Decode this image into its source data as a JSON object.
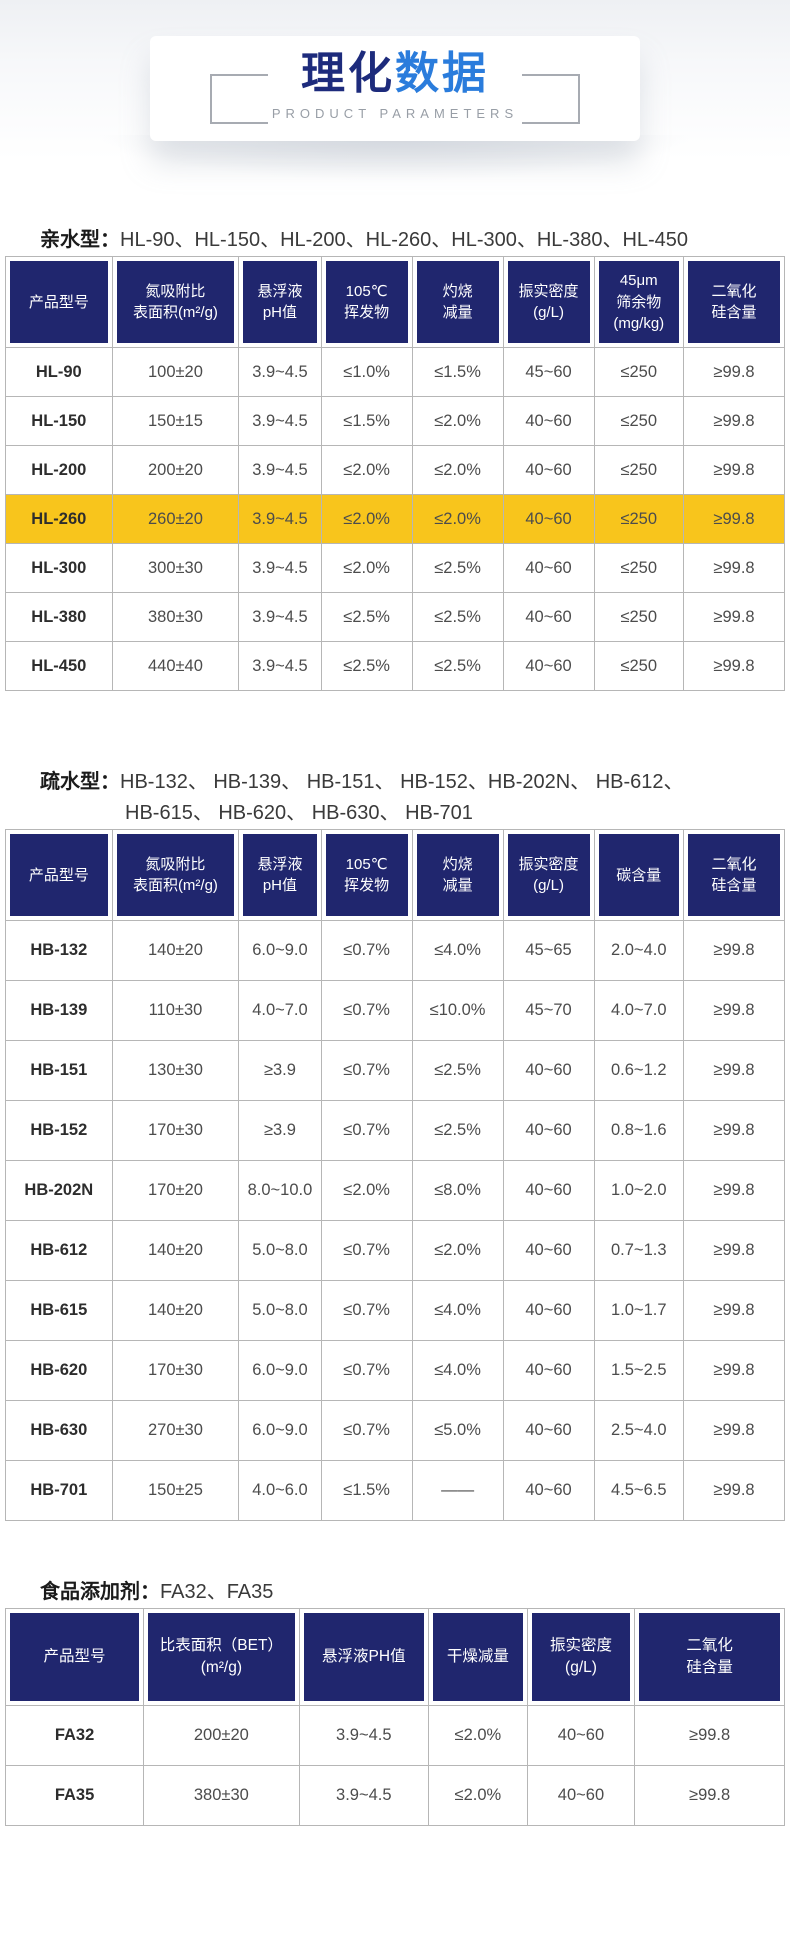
{
  "page": {
    "hero": {
      "title_primary": "理化",
      "title_accent": "数据",
      "subtitle": "PRODUCT PARAMETERS"
    },
    "colors": {
      "header_navy": "#20266e",
      "highlight_yellow": "#f8c51c",
      "title_navy": "#1d2b7c",
      "title_blue": "#2a7cdc"
    },
    "sections": [
      {
        "label": "亲水型：",
        "models_line1": "HL-90、HL-150、HL-200、HL-260、HL-300、HL-380、HL-450",
        "models_line2": "",
        "columns": [
          "产品型号",
          "氮吸附比\n表面积(m²/g)",
          "悬浮液\npH值",
          "105℃\n挥发物",
          "灼烧\n减量",
          "振实密度\n(g/L)",
          "45μm\n筛余物\n(mg/kg)",
          "二氧化\n硅含量"
        ],
        "highlighted_product": "HL-260",
        "rows": [
          [
            "HL-90",
            "100±20",
            "3.9~4.5",
            "≤1.0%",
            "≤1.5%",
            "45~60",
            "≤250",
            "≥99.8"
          ],
          [
            "HL-150",
            "150±15",
            "3.9~4.5",
            "≤1.5%",
            "≤2.0%",
            "40~60",
            "≤250",
            "≥99.8"
          ],
          [
            "HL-200",
            "200±20",
            "3.9~4.5",
            "≤2.0%",
            "≤2.0%",
            "40~60",
            "≤250",
            "≥99.8"
          ],
          [
            "HL-260",
            "260±20",
            "3.9~4.5",
            "≤2.0%",
            "≤2.0%",
            "40~60",
            "≤250",
            "≥99.8"
          ],
          [
            "HL-300",
            "300±30",
            "3.9~4.5",
            "≤2.0%",
            "≤2.5%",
            "40~60",
            "≤250",
            "≥99.8"
          ],
          [
            "HL-380",
            "380±30",
            "3.9~4.5",
            "≤2.5%",
            "≤2.5%",
            "40~60",
            "≤250",
            "≥99.8"
          ],
          [
            "HL-450",
            "440±40",
            "3.9~4.5",
            "≤2.5%",
            "≤2.5%",
            "40~60",
            "≤250",
            "≥99.8"
          ]
        ]
      },
      {
        "label": "疏水型：",
        "models_line1": "HB-132、 HB-139、 HB-151、 HB-152、HB-202N、 HB-612、",
        "models_line2": "HB-615、 HB-620、 HB-630、 HB-701",
        "columns": [
          "产品型号",
          "氮吸附比\n表面积(m²/g)",
          "悬浮液\npH值",
          "105℃\n挥发物",
          "灼烧\n减量",
          "振实密度\n(g/L)",
          "碳含量",
          "二氧化\n硅含量"
        ],
        "highlighted_product": "",
        "rows": [
          [
            "HB-132",
            "140±20",
            "6.0~9.0",
            "≤0.7%",
            "≤4.0%",
            "45~65",
            "2.0~4.0",
            "≥99.8"
          ],
          [
            "HB-139",
            "110±30",
            "4.0~7.0",
            "≤0.7%",
            "≤10.0%",
            "45~70",
            "4.0~7.0",
            "≥99.8"
          ],
          [
            "HB-151",
            "130±30",
            "≥3.9",
            "≤0.7%",
            "≤2.5%",
            "40~60",
            "0.6~1.2",
            "≥99.8"
          ],
          [
            "HB-152",
            "170±30",
            "≥3.9",
            "≤0.7%",
            "≤2.5%",
            "40~60",
            "0.8~1.6",
            "≥99.8"
          ],
          [
            "HB-202N",
            "170±20",
            "8.0~10.0",
            "≤2.0%",
            "≤8.0%",
            "40~60",
            "1.0~2.0",
            "≥99.8"
          ],
          [
            "HB-612",
            "140±20",
            "5.0~8.0",
            "≤0.7%",
            "≤2.0%",
            "40~60",
            "0.7~1.3",
            "≥99.8"
          ],
          [
            "HB-615",
            "140±20",
            "5.0~8.0",
            "≤0.7%",
            "≤4.0%",
            "40~60",
            "1.0~1.7",
            "≥99.8"
          ],
          [
            "HB-620",
            "170±30",
            "6.0~9.0",
            "≤0.7%",
            "≤4.0%",
            "40~60",
            "1.5~2.5",
            "≥99.8"
          ],
          [
            "HB-630",
            "270±30",
            "6.0~9.0",
            "≤0.7%",
            "≤5.0%",
            "40~60",
            "2.5~4.0",
            "≥99.8"
          ],
          [
            "HB-701",
            "150±25",
            "4.0~6.0",
            "≤1.5%",
            "——",
            "40~60",
            "4.5~6.5",
            "≥99.8"
          ]
        ]
      },
      {
        "label": "食品添加剂：",
        "models_line1": "FA32、FA35",
        "models_line2": "",
        "columns": [
          "产品型号",
          "比表面积（BET）\n(m²/g)",
          "悬浮液PH值",
          "干燥减量",
          "振实密度\n(g/L)",
          "二氧化\n硅含量"
        ],
        "highlighted_product": "",
        "rows": [
          [
            "FA32",
            "200±20",
            "3.9~4.5",
            "≤2.0%",
            "40~60",
            "≥99.8"
          ],
          [
            "FA35",
            "380±30",
            "3.9~4.5",
            "≤2.0%",
            "40~60",
            "≥99.8"
          ]
        ]
      }
    ]
  }
}
